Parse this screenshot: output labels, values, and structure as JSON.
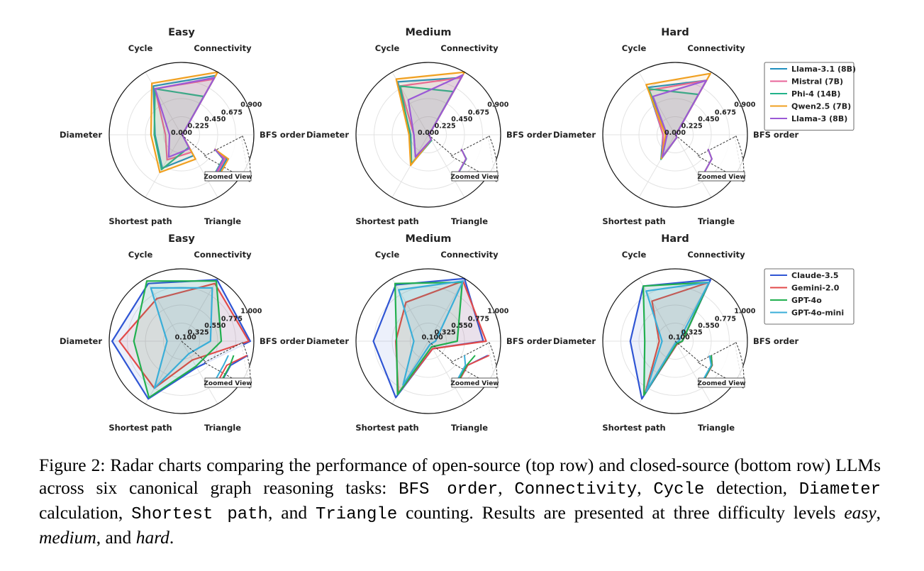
{
  "chart_data": {
    "type": "radar",
    "axes": [
      "BFS order",
      "Connectivity",
      "Cycle",
      "Diameter",
      "Shortest path",
      "Triangle"
    ],
    "zoom_label": "Zoomed View",
    "rows": [
      {
        "row": "open-source",
        "ticks": [
          "0.000",
          "0.225",
          "0.450",
          "0.675",
          "0.900"
        ],
        "rmax": 0.9,
        "legend": [
          {
            "name": "Llama-3.1 (8B)",
            "color": "#1f8fbf"
          },
          {
            "name": "Mistral (7B)",
            "color": "#e8649a"
          },
          {
            "name": "Phi-4 (14B)",
            "color": "#22b38a"
          },
          {
            "name": "Qwen2.5 (7B)",
            "color": "#f0a020"
          },
          {
            "name": "Llama-3 (8B)",
            "color": "#9b59d6"
          }
        ],
        "charts": [
          {
            "title": "Easy",
            "series": [
              {
                "name": "Llama-3.1 (8B)",
                "values": [
                  0.01,
                  0.85,
                  0.7,
                  0.33,
                  0.48,
                  0.3
                ]
              },
              {
                "name": "Mistral (7B)",
                "values": [
                  0.01,
                  0.8,
                  0.66,
                  0.2,
                  0.36,
                  0.25
                ]
              },
              {
                "name": "Phi-4 (14B)",
                "values": [
                  0.01,
                  0.55,
                  0.66,
                  0.34,
                  0.5,
                  0.18
                ]
              },
              {
                "name": "Qwen2.5 (7B)",
                "values": [
                  0.01,
                  0.92,
                  0.74,
                  0.38,
                  0.54,
                  0.35
                ]
              },
              {
                "name": "Llama-3 (8B)",
                "values": [
                  0.01,
                  0.82,
                  0.66,
                  0.15,
                  0.32,
                  0.2
                ]
              }
            ]
          },
          {
            "title": "Medium",
            "series": [
              {
                "name": "Llama-3.1 (8B)",
                "values": [
                  0.01,
                  0.82,
                  0.76,
                  0.22,
                  0.42,
                  0.07
                ]
              },
              {
                "name": "Mistral (7B)",
                "values": [
                  0.01,
                  0.82,
                  0.7,
                  0.18,
                  0.32,
                  0.07
                ]
              },
              {
                "name": "Phi-4 (14B)",
                "values": [
                  0.01,
                  0.62,
                  0.7,
                  0.23,
                  0.42,
                  0.08
                ]
              },
              {
                "name": "Qwen2.5 (7B)",
                "values": [
                  0.01,
                  0.9,
                  0.8,
                  0.24,
                  0.44,
                  0.07
                ]
              },
              {
                "name": "Llama-3 (8B)",
                "values": [
                  0.01,
                  0.86,
                  0.5,
                  0.18,
                  0.32,
                  0.07
                ]
              }
            ]
          },
          {
            "title": "Hard",
            "series": [
              {
                "name": "Llama-3.1 (8B)",
                "values": [
                  0.01,
                  0.78,
                  0.68,
                  0.15,
                  0.35,
                  0.04
                ]
              },
              {
                "name": "Mistral (7B)",
                "values": [
                  0.01,
                  0.78,
                  0.64,
                  0.15,
                  0.32,
                  0.04
                ]
              },
              {
                "name": "Phi-4 (14B)",
                "values": [
                  0.01,
                  0.58,
                  0.66,
                  0.1,
                  0.35,
                  0.04
                ]
              },
              {
                "name": "Qwen2.5 (7B)",
                "values": [
                  0.01,
                  0.88,
                  0.72,
                  0.12,
                  0.34,
                  0.04
                ]
              },
              {
                "name": "Llama-3 (8B)",
                "values": [
                  0.01,
                  0.78,
                  0.55,
                  0.1,
                  0.32,
                  0.04
                ]
              }
            ]
          }
        ]
      },
      {
        "row": "closed-source",
        "ticks": [
          "0.100",
          "0.325",
          "0.550",
          "0.775",
          "1.000"
        ],
        "tick_values": [
          0.1,
          0.325,
          0.55,
          0.775,
          1.0
        ],
        "rmax": 1.0,
        "legend": [
          {
            "name": "Claude-3.5",
            "color": "#2f55d4"
          },
          {
            "name": "Gemini-2.0",
            "color": "#e24a4a"
          },
          {
            "name": "GPT-4o",
            "color": "#22b050"
          },
          {
            "name": "GPT-4o-mini",
            "color": "#3aaed8"
          }
        ],
        "charts": [
          {
            "title": "Easy",
            "series": [
              {
                "name": "Claude-3.5",
                "values": [
                  0.95,
                  0.98,
                  0.92,
                  0.96,
                  0.92,
                  0.42
                ]
              },
              {
                "name": "Gemini-2.0",
                "values": [
                  0.93,
                  0.92,
                  0.68,
                  0.86,
                  0.75,
                  0.3
                ]
              },
              {
                "name": "GPT-4o",
                "values": [
                  0.55,
                  0.96,
                  0.96,
                  0.66,
                  0.9,
                  0.4
                ]
              },
              {
                "name": "GPT-4o-mini",
                "values": [
                  0.4,
                  0.85,
                  0.85,
                  0.2,
                  0.75,
                  0.2
                ]
              }
            ]
          },
          {
            "title": "Medium",
            "series": [
              {
                "name": "Claude-3.5",
                "values": [
                  0.76,
                  1.0,
                  0.9,
                  0.76,
                  0.9,
                  0.12
                ]
              },
              {
                "name": "Gemini-2.0",
                "values": [
                  0.8,
                  0.96,
                  0.62,
                  0.45,
                  0.83,
                  0.12
                ]
              },
              {
                "name": "GPT-4o",
                "values": [
                  0.4,
                  0.94,
                  0.92,
                  0.44,
                  0.85,
                  0.09
                ]
              },
              {
                "name": "GPT-4o-mini",
                "values": [
                  0.1,
                  0.96,
                  0.82,
                  0.2,
                  0.7,
                  0.05
                ]
              }
            ]
          },
          {
            "title": "Hard",
            "series": [
              {
                "name": "Claude-3.5",
                "values": [
                  0.1,
                  0.98,
                  0.88,
                  0.62,
                  0.92,
                  0.05
                ]
              },
              {
                "name": "Gemini-2.0",
                "values": [
                  0.1,
                  0.94,
                  0.64,
                  0.22,
                  0.83,
                  0.05
                ]
              },
              {
                "name": "GPT-4o",
                "values": [
                  0.1,
                  0.94,
                  0.88,
                  0.42,
                  0.86,
                  0.04
                ]
              },
              {
                "name": "GPT-4o-mini",
                "values": [
                  0.05,
                  0.94,
                  0.8,
                  0.18,
                  0.8,
                  0.02
                ]
              }
            ]
          }
        ]
      }
    ]
  },
  "caption": {
    "prefix": "Figure 2: Radar charts comparing the performance of open-source (top row) and closed-source (bottom row) LLMs across six canonical graph reasoning tasks: ",
    "t1": "BFS order",
    "s1": ", ",
    "t2": "Connectivity",
    "s2": ", ",
    "t3": "Cycle",
    "s3": " detection, ",
    "t4": "Diameter",
    "s4": " calculation, ",
    "t5": "Shortest path",
    "s5": ", and ",
    "t6": "Triangle",
    "s6": " counting. Results are presented at three difficulty levels ",
    "easy": "easy",
    "s7": ", ",
    "medium": "medium",
    "s8": ", and ",
    "hard": "hard",
    "s9": "."
  }
}
